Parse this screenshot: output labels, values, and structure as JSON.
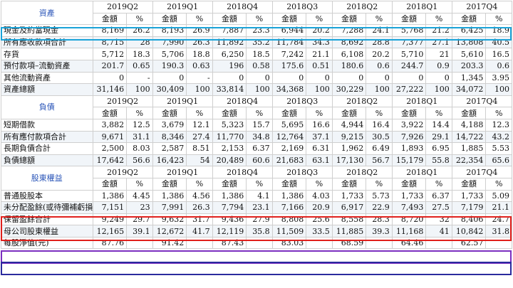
{
  "sections": {
    "assets": {
      "title": "資產",
      "periods": [
        "2019Q2",
        "2019Q1",
        "2018Q4",
        "2018Q3",
        "2018Q2",
        "2018Q1",
        "2017Q4"
      ],
      "subheaders": [
        "金額",
        "%"
      ],
      "rows": [
        {
          "label": "現金及約當現金",
          "cells": [
            "8,169",
            "26.2",
            "8,193",
            "26.9",
            "7,887",
            "23.3",
            "6,944",
            "20.2",
            "7,288",
            "24.1",
            "5,768",
            "21.2",
            "6,425",
            "18.9"
          ]
        },
        {
          "label": "所有應收款項合計",
          "cells": [
            "8,715",
            "28",
            "7,990",
            "26.3",
            "11,892",
            "35.2",
            "11,784",
            "34.3",
            "8,692",
            "28.8",
            "7,377",
            "27.1",
            "13,808",
            "40.5"
          ]
        },
        {
          "label": "存貨",
          "cells": [
            "5,712",
            "18.3",
            "5,706",
            "18.8",
            "6,250",
            "18.5",
            "7,242",
            "21.1",
            "6,108",
            "20.2",
            "5,710",
            "21",
            "5,610",
            "16.5"
          ]
        },
        {
          "label": "預付款項–流動資產",
          "cells": [
            "201.7",
            "0.65",
            "190.3",
            "0.63",
            "196",
            "0.58",
            "175.6",
            "0.51",
            "180.6",
            "0.6",
            "244.7",
            "0.9",
            "203.3",
            "0.6"
          ]
        },
        {
          "label": "其他流動資產",
          "cells": [
            "0",
            "-",
            "0",
            "-",
            "0",
            "0",
            "0",
            "0",
            "0",
            "0",
            "0",
            "0",
            "1,345",
            "3.95"
          ]
        },
        {
          "label": "資產總額",
          "cells": [
            "31,146",
            "100",
            "30,409",
            "100",
            "33,814",
            "100",
            "34,368",
            "100",
            "30,229",
            "100",
            "27,222",
            "100",
            "34,072",
            "100"
          ]
        }
      ]
    },
    "liabilities": {
      "title": "負債",
      "periods": [
        "2019Q2",
        "2019Q1",
        "2018Q4",
        "2018Q3",
        "2018Q2",
        "2018Q1",
        "2017Q4"
      ],
      "subheaders": [
        "金額",
        "%"
      ],
      "rows": [
        {
          "label": "短期借款",
          "cells": [
            "3,882",
            "12.5",
            "3,679",
            "12.1",
            "5,323",
            "15.7",
            "5,695",
            "16.6",
            "4,944",
            "16.4",
            "3,922",
            "14.4",
            "4,188",
            "12.3"
          ]
        },
        {
          "label": "所有應付款項合計",
          "cells": [
            "9,671",
            "31.1",
            "8,346",
            "27.4",
            "11,770",
            "34.8",
            "12,764",
            "37.1",
            "9,215",
            "30.5",
            "7,926",
            "29.1",
            "14,722",
            "43.2"
          ]
        },
        {
          "label": "長期負債合計",
          "cells": [
            "2,500",
            "8.03",
            "2,587",
            "8.51",
            "2,153",
            "6.37",
            "2,169",
            "6.31",
            "1,962",
            "6.49",
            "1,893",
            "6.95",
            "1,885",
            "5.53"
          ]
        },
        {
          "label": "負債總額",
          "cells": [
            "17,642",
            "56.6",
            "16,423",
            "54",
            "20,489",
            "60.6",
            "21,683",
            "63.1",
            "17,130",
            "56.7",
            "15,179",
            "55.8",
            "22,354",
            "65.6"
          ]
        }
      ]
    },
    "equity": {
      "title": "股東權益",
      "periods": [
        "2019Q2",
        "2019Q1",
        "2018Q4",
        "2018Q3",
        "2018Q2",
        "2018Q1",
        "2017Q4"
      ],
      "subheaders": [
        "金額",
        "%"
      ],
      "rows": [
        {
          "label": "普通股股本",
          "cells": [
            "1,386",
            "4.45",
            "1,386",
            "4.56",
            "1,386",
            "4.1",
            "1,386",
            "4.03",
            "1,733",
            "5.73",
            "1,733",
            "6.37",
            "1,733",
            "5.09"
          ]
        },
        {
          "label": "未分配盈餘(或待彌補虧損)",
          "cells": [
            "7,151",
            "23",
            "7,991",
            "26.3",
            "7,794",
            "23.1",
            "7,166",
            "20.9",
            "6,917",
            "22.9",
            "7,493",
            "27.5",
            "7,179",
            "21.1"
          ]
        },
        {
          "label": "保留盈餘合計",
          "cells": [
            "9,249",
            "29.7",
            "9,632",
            "31.7",
            "9,436",
            "27.9",
            "8,808",
            "25.6",
            "8,558",
            "28.3",
            "8,720",
            "32",
            "8,406",
            "24.7"
          ]
        },
        {
          "label": "母公司股東權益",
          "cells": [
            "12,165",
            "39.1",
            "12,672",
            "41.7",
            "12,119",
            "35.8",
            "11,509",
            "33.5",
            "11,885",
            "39.3",
            "11,168",
            "41",
            "10,842",
            "31.8"
          ]
        },
        {
          "label": "每股淨值(元)",
          "cells": [
            "87.76",
            "",
            "91.42",
            "",
            "87.43",
            "",
            "83.03",
            "",
            "68.59",
            "",
            "64.46",
            "",
            "62.57",
            ""
          ]
        }
      ]
    }
  },
  "colors": {
    "section_title": "#2a55b8",
    "box_cash": "#1aa3d8",
    "box_capital": "#e0201c",
    "box_parent_equity": "#7b2fc0",
    "box_nav": "#2b2b9e"
  }
}
